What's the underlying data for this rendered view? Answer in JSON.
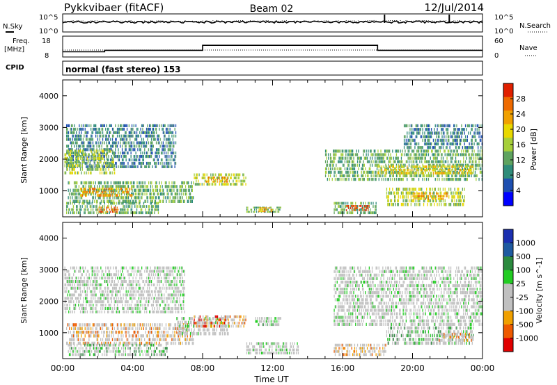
{
  "header": {
    "station": "Pykkvibaer (fitACF)",
    "beam": "Beam 02",
    "date": "12/Jul/2014"
  },
  "noise_panel": {
    "left_label": "N.Sky",
    "right_label": "N.Search",
    "left_ticks": [
      "10^5",
      "10^0"
    ],
    "right_ticks": [
      "10^5",
      "10^0"
    ]
  },
  "freq_panel": {
    "left_label_1": "Freq.",
    "left_label_2": "[MHz]",
    "left_ticks": [
      "18",
      "8"
    ],
    "right_label": "Nave",
    "right_ticks": [
      "60",
      "0"
    ]
  },
  "cpid_panel": {
    "label": "CPID",
    "text": "normal (fast stereo) 153"
  },
  "x_axis": {
    "label": "Time UT",
    "ticks": [
      "00:00",
      "04:00",
      "08:00",
      "12:00",
      "16:00",
      "20:00",
      "00:00"
    ]
  },
  "colors": {
    "power_scale": [
      "#0000ff",
      "#1e4fb0",
      "#2f8c7a",
      "#5fa35f",
      "#a6cf3a",
      "#e8d800",
      "#f0a000",
      "#ee6a00",
      "#e02000"
    ],
    "velocity_scale": [
      "#e00000",
      "#ee5a00",
      "#f0a000",
      "#c0c0c0",
      "#c0c0c0",
      "#22cc22",
      "#2b8a3e",
      "#1e5aa0",
      "#1b2fb0"
    ],
    "ground_scatter": "#c0c0c0"
  },
  "chart_data": [
    {
      "type": "line",
      "title": "N.Sky / N.Search",
      "x_hours": [
        0,
        2,
        4,
        6,
        8,
        10,
        12,
        14,
        16,
        18,
        18.4,
        20,
        22,
        24
      ],
      "n_sky_level": 0.55,
      "n_search_level": 0.6,
      "spike_hours": [
        18.4,
        22.1
      ],
      "ylabel_left": "N.Sky",
      "ylabel_right": "N.Search"
    },
    {
      "type": "line",
      "title": "Freq. [MHz] / Nave",
      "freq_steps": [
        {
          "start": 0,
          "end": 2.4,
          "value": 10.5
        },
        {
          "start": 2.4,
          "end": 8.0,
          "value": 11.2
        },
        {
          "start": 8.0,
          "end": 18.0,
          "value": 13.6
        },
        {
          "start": 18.0,
          "end": 24.0,
          "value": 11.2
        }
      ],
      "freq_ylim": [
        8,
        18
      ],
      "nave_level": 20,
      "nave_ylim": [
        0,
        60
      ]
    },
    {
      "type": "heatmap",
      "title": "Power [dB]",
      "ylabel": "Slant Range [km]",
      "xlabel": "Time UT",
      "xlim": [
        0,
        24
      ],
      "ylim": [
        180,
        4500
      ],
      "yticks": [
        "4000",
        "3000",
        "2000",
        "1000"
      ],
      "colorbar_label": "Power [dB]",
      "colorbar_ticks": [
        "28",
        "24",
        "20",
        "16",
        "12",
        "8",
        "4"
      ],
      "bands": [
        {
          "t0": 0.2,
          "t1": 6.5,
          "r0": 1700,
          "r1": 3100,
          "level": 2
        },
        {
          "t0": 0.1,
          "t1": 3.0,
          "r0": 1500,
          "r1": 2300,
          "level": 4
        },
        {
          "t0": 0.3,
          "t1": 7.5,
          "r0": 600,
          "r1": 1300,
          "level": 3
        },
        {
          "t0": 1.0,
          "t1": 4.0,
          "r0": 800,
          "r1": 1100,
          "level": 6
        },
        {
          "t0": 0.2,
          "t1": 5.5,
          "r0": 250,
          "r1": 650,
          "level": 3
        },
        {
          "t0": 2.0,
          "t1": 3.2,
          "r0": 300,
          "r1": 500,
          "level": 7
        },
        {
          "t0": 7.5,
          "t1": 10.5,
          "r0": 1150,
          "r1": 1550,
          "level": 4
        },
        {
          "t0": 8.2,
          "t1": 9.5,
          "r0": 1250,
          "r1": 1450,
          "level": 6
        },
        {
          "t0": 10.5,
          "t1": 12.5,
          "r0": 300,
          "r1": 500,
          "level": 3
        },
        {
          "t0": 11.2,
          "t1": 12.0,
          "r0": 320,
          "r1": 480,
          "level": 6
        },
        {
          "t0": 15.5,
          "t1": 18.0,
          "r0": 250,
          "r1": 650,
          "level": 3
        },
        {
          "t0": 16.2,
          "t1": 17.6,
          "r0": 350,
          "r1": 550,
          "level": 8
        },
        {
          "t0": 15.0,
          "t1": 24.0,
          "r0": 1300,
          "r1": 2300,
          "level": 3
        },
        {
          "t0": 18.0,
          "t1": 23.5,
          "r0": 1500,
          "r1": 1800,
          "level": 5
        },
        {
          "t0": 19.5,
          "t1": 24.0,
          "r0": 2300,
          "r1": 3100,
          "level": 2
        },
        {
          "t0": 18.5,
          "t1": 23.0,
          "r0": 500,
          "r1": 1100,
          "level": 4
        },
        {
          "t0": 20.0,
          "t1": 22.0,
          "r0": 700,
          "r1": 950,
          "level": 6
        }
      ]
    },
    {
      "type": "heatmap",
      "title": "Velocity [m s^-1]",
      "ylabel": "Slant Range [km]",
      "xlabel": "Time UT",
      "xlim": [
        0,
        24
      ],
      "ylim": [
        180,
        4500
      ],
      "yticks": [
        "4000",
        "3000",
        "2000",
        "1000"
      ],
      "colorbar_label": "Velocity [m s^-1]",
      "colorbar_ticks": [
        "1000",
        "500",
        "100",
        "25",
        "-25",
        "-100",
        "-500",
        "-1000"
      ],
      "bands": [
        {
          "t0": 0.1,
          "t1": 7.0,
          "r0": 1600,
          "r1": 3100,
          "level": 4
        },
        {
          "t0": 0.2,
          "t1": 7.5,
          "r0": 600,
          "r1": 1300,
          "level": 2
        },
        {
          "t0": 0.3,
          "t1": 6.0,
          "r0": 250,
          "r1": 650,
          "level": 5
        },
        {
          "t0": 6.5,
          "t1": 9.5,
          "r0": 900,
          "r1": 1500,
          "level": 4
        },
        {
          "t0": 7.5,
          "t1": 10.5,
          "r0": 1150,
          "r1": 1550,
          "level": 1
        },
        {
          "t0": 10.5,
          "t1": 13.5,
          "r0": 300,
          "r1": 700,
          "level": 4
        },
        {
          "t0": 11.0,
          "t1": 12.5,
          "r0": 1200,
          "r1": 1500,
          "level": 5
        },
        {
          "t0": 15.5,
          "t1": 18.5,
          "r0": 250,
          "r1": 650,
          "level": 2
        },
        {
          "t0": 15.5,
          "t1": 24.0,
          "r0": 1200,
          "r1": 3100,
          "level": 4
        },
        {
          "t0": 18.5,
          "t1": 23.5,
          "r0": 600,
          "r1": 1200,
          "level": 5
        },
        {
          "t0": 21.5,
          "t1": 23.5,
          "r0": 700,
          "r1": 1000,
          "level": 2
        }
      ]
    }
  ]
}
